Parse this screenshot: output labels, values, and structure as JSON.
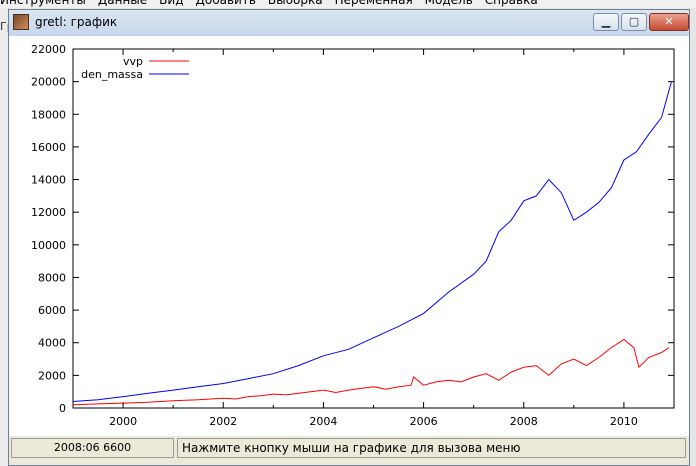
{
  "parent": {
    "menu": [
      "Инструменты",
      "Данные",
      "Вид",
      "Добавить",
      "Выборка",
      "Переменная",
      "Модель",
      "Справка"
    ],
    "left_fragment": "Гр"
  },
  "window": {
    "title": "gretl: график",
    "icon": "gretl-icon",
    "buttons": {
      "minimize": "minimize-icon",
      "maximize": "maximize-icon",
      "close": "close-icon"
    }
  },
  "statusbar": {
    "coords": "2008:06 6600",
    "hint": "Нажмите кнопку мыши на графике для вызова меню"
  },
  "chart_data": {
    "type": "line",
    "title": "",
    "xlabel": "",
    "ylabel": "",
    "xlim": [
      1999.0,
      2011.0
    ],
    "ylim": [
      0,
      22000
    ],
    "xticks": [
      "2000",
      "2002",
      "2004",
      "2006",
      "2008",
      "2010"
    ],
    "yticks": [
      "0",
      "2000",
      "4000",
      "6000",
      "8000",
      "10000",
      "12000",
      "14000",
      "16000",
      "18000",
      "20000",
      "22000"
    ],
    "legend_position": "top-left",
    "grid": false,
    "series": [
      {
        "name": "vvp",
        "color": "#ff0000",
        "x": [
          1999.0,
          1999.5,
          2000.0,
          2000.5,
          2001.0,
          2001.5,
          2002.0,
          2002.25,
          2002.5,
          2002.75,
          2003.0,
          2003.25,
          2003.5,
          2003.75,
          2004.0,
          2004.25,
          2004.5,
          2004.75,
          2005.0,
          2005.25,
          2005.5,
          2005.75,
          2005.8,
          2006.0,
          2006.25,
          2006.5,
          2006.75,
          2007.0,
          2007.25,
          2007.5,
          2007.75,
          2008.0,
          2008.25,
          2008.5,
          2008.75,
          2009.0,
          2009.25,
          2009.5,
          2009.75,
          2010.0,
          2010.2,
          2010.3,
          2010.5,
          2010.75,
          2010.9
        ],
        "y": [
          200,
          250,
          300,
          350,
          450,
          500,
          600,
          550,
          700,
          750,
          850,
          800,
          900,
          1000,
          1100,
          950,
          1100,
          1200,
          1300,
          1150,
          1300,
          1400,
          1900,
          1400,
          1600,
          1700,
          1600,
          1900,
          2100,
          1700,
          2200,
          2500,
          2600,
          2000,
          2700,
          3000,
          2600,
          3100,
          3700,
          4200,
          3700,
          2500,
          3100,
          3400,
          3700
        ]
      },
      {
        "name": "den_massa",
        "color": "#0000ff",
        "x": [
          1999.0,
          1999.5,
          2000.0,
          2000.5,
          2001.0,
          2001.5,
          2002.0,
          2002.5,
          2003.0,
          2003.5,
          2004.0,
          2004.5,
          2005.0,
          2005.5,
          2006.0,
          2006.5,
          2007.0,
          2007.25,
          2007.5,
          2007.75,
          2008.0,
          2008.25,
          2008.5,
          2008.75,
          2009.0,
          2009.25,
          2009.5,
          2009.75,
          2010.0,
          2010.25,
          2010.5,
          2010.75,
          2010.95
        ],
        "y": [
          400,
          500,
          700,
          900,
          1100,
          1300,
          1500,
          1800,
          2100,
          2600,
          3200,
          3600,
          4300,
          5000,
          5800,
          7100,
          8200,
          9000,
          10800,
          11500,
          12700,
          13000,
          14000,
          13200,
          11500,
          12000,
          12600,
          13500,
          15200,
          15700,
          16800,
          17800,
          20000
        ]
      }
    ]
  }
}
